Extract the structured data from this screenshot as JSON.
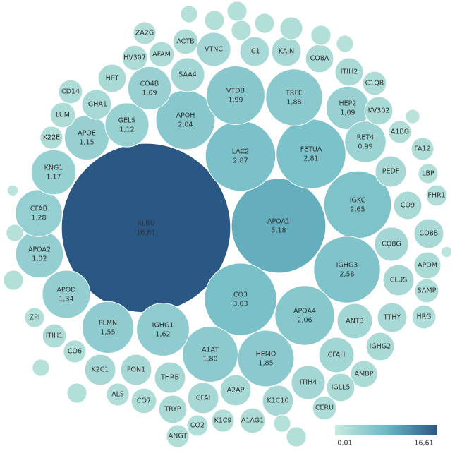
{
  "chart_data": {
    "type": "bubble",
    "labels": [
      "ALBU",
      "APOA1",
      "CO3",
      "LAC2",
      "FETUA",
      "IGKC",
      "IGHG3",
      "APOA4",
      "APOH",
      "VTDB",
      "TRFE",
      "HEMO",
      "A1AT",
      "IGHG1",
      "PLMN",
      "APOD",
      "APOA2",
      "CFAB",
      "KNG1",
      "APOE",
      "GELS",
      "CO4B",
      "HEP2",
      "RET4",
      "ZA2G",
      "ACTB",
      "VTNC",
      "IC1",
      "KAIN",
      "CO8A",
      "AFAM",
      "HV307",
      "HPT",
      "SAA4",
      "ITIH2",
      "C1QB",
      "CD14",
      "IGHA1",
      "KV302",
      "LUM",
      "A1BG",
      "K22E",
      "FA12",
      "PEDF",
      "LBP",
      "FHR1",
      "CO9",
      "CO8B",
      "CO8G",
      "APOM",
      "CLUS",
      "SAMP",
      "TTHY",
      "HRG",
      "ANT3",
      "ZPI",
      "ITIH1",
      "IGHG2",
      "CFAH",
      "CO6",
      "AMBP",
      "K2C1",
      "PON1",
      "THRB",
      "A2AP",
      "ITIH4",
      "IGLL5",
      "ALS",
      "CO7",
      "CFAI",
      "K1C10",
      "CERU",
      "TRYP",
      "K1C9",
      "A1AG1",
      "CO2",
      "ANGT",
      null,
      null,
      null,
      null,
      null,
      null,
      null,
      null,
      null,
      null,
      null,
      null,
      null,
      null,
      null,
      null,
      null
    ],
    "values": [
      16.61,
      5.18,
      3.03,
      2.87,
      2.81,
      2.65,
      2.58,
      2.06,
      2.04,
      1.99,
      1.88,
      1.85,
      1.8,
      1.62,
      1.55,
      1.34,
      1.32,
      1.28,
      1.17,
      1.15,
      1.12,
      1.09,
      1.09,
      0.99,
      0.3,
      0.37,
      0.67,
      0.51,
      0.51,
      0.46,
      0.37,
      0.37,
      0.46,
      0.67,
      0.46,
      0.33,
      0.33,
      0.51,
      0.46,
      0.37,
      0.3,
      0.3,
      0.3,
      0.56,
      0.23,
      0.26,
      0.46,
      0.51,
      0.67,
      0.42,
      0.56,
      0.33,
      0.51,
      0.33,
      0.72,
      0.23,
      0.33,
      0.46,
      0.72,
      0.3,
      0.42,
      0.56,
      0.56,
      0.56,
      0.56,
      0.67,
      0.46,
      0.3,
      0.37,
      0.56,
      0.56,
      0.33,
      0.46,
      0.3,
      0.37,
      0.26,
      0.3,
      0.17,
      0.23,
      0.23,
      0.23,
      0.23,
      0.3,
      0.23,
      0.17,
      0.12,
      0.07,
      0.07,
      0.17,
      0.23,
      0.17,
      0.23,
      0.23,
      0.17
    ],
    "value_labels": [
      "16,61",
      "5,18",
      "3,03",
      "2,87",
      "2,81",
      "2,65",
      "2,58",
      "2,06",
      "2,04",
      "1,99",
      "1,88",
      "1,85",
      "1,80",
      "1,62",
      "1,55",
      "1,34",
      "1,32",
      "1,28",
      "1,17",
      "1,15",
      "1,12",
      "1,09",
      "1,09",
      "0,99",
      null,
      null,
      null,
      null,
      null,
      null,
      null,
      null,
      null,
      null,
      null,
      null,
      null,
      null,
      null,
      null,
      null,
      null,
      null,
      null,
      null,
      null,
      null,
      null,
      null,
      null,
      null,
      null,
      null,
      null,
      null,
      null,
      null,
      null,
      null,
      null,
      null,
      null,
      null,
      null,
      null,
      null,
      null,
      null,
      null,
      null,
      null,
      null,
      null,
      null,
      null,
      null,
      null,
      null,
      null,
      null,
      null,
      null,
      null,
      null,
      null,
      null,
      null,
      null,
      null,
      null,
      null,
      null,
      null,
      null
    ],
    "colors": [
      "#c8eadf",
      "#6cb9c5",
      "#2b5784"
    ],
    "legend": {
      "min": {
        "value": 0.01,
        "label": "0,01"
      },
      "max": {
        "value": 16.61,
        "label": "16,61"
      }
    }
  }
}
